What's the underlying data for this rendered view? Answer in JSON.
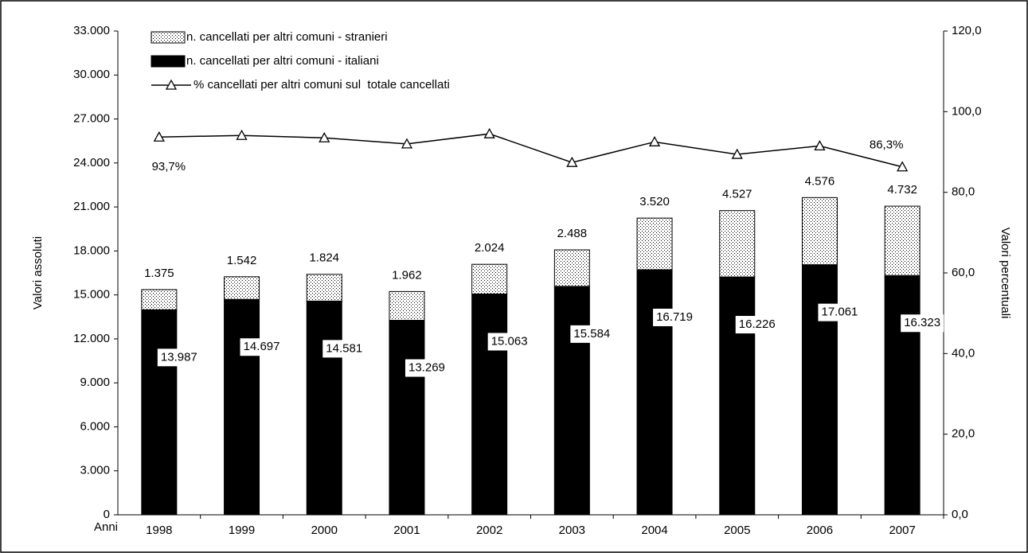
{
  "chart_data": {
    "type": "bar",
    "stacked": true,
    "x_label": "Anni",
    "y_label": "Valori assoluti",
    "y2_label": "Valori percentuali",
    "categories": [
      "1998",
      "1999",
      "2000",
      "2001",
      "2002",
      "2003",
      "2004",
      "2005",
      "2006",
      "2007"
    ],
    "series": [
      {
        "name": "n. cancellati per altri comuni - italiani",
        "color": "#000000",
        "values": [
          13987,
          14697,
          14581,
          13269,
          15063,
          15584,
          16719,
          16226,
          17061,
          16323
        ],
        "value_labels": [
          "13.987",
          "14.697",
          "14.581",
          "13.269",
          "15.063",
          "15.584",
          "16.719",
          "16.226",
          "17.061",
          "16.323"
        ]
      },
      {
        "name": "n. cancellati per altri comuni - stranieri",
        "color": "#ffffff",
        "pattern": "dotted",
        "values": [
          1375,
          1542,
          1824,
          1962,
          2024,
          2488,
          3520,
          4527,
          4576,
          4732
        ],
        "value_labels": [
          "1.375",
          "1.542",
          "1.824",
          "1.962",
          "2.024",
          "2.488",
          "3.520",
          "4.527",
          "4.576",
          "4.732"
        ]
      },
      {
        "name": "% cancellati per altri comuni sul  totale cancellati",
        "type": "line",
        "axis": "y2",
        "color": "#000000",
        "values": [
          93.7,
          94.1,
          93.5,
          92.0,
          94.5,
          87.4,
          92.5,
          89.4,
          91.5,
          86.3
        ],
        "value_labels": [
          "93,7%",
          null,
          null,
          null,
          null,
          null,
          null,
          null,
          null,
          "86,3%"
        ]
      }
    ],
    "ylim": [
      0,
      33000
    ],
    "yticks": [
      0,
      {
        "value": 3000,
        "label": "3.000"
      },
      {
        "value": 6000,
        "label": "6.000"
      },
      {
        "value": 9000,
        "label": "9.000"
      },
      {
        "value": 12000,
        "label": "12.000"
      },
      {
        "value": 15000,
        "label": "15.000"
      },
      {
        "value": 18000,
        "label": "18.000"
      },
      {
        "value": 21000,
        "label": "21.000"
      },
      {
        "value": 24000,
        "label": "24.000"
      },
      {
        "value": 27000,
        "label": "27.000"
      },
      {
        "value": 30000,
        "label": "30.000"
      },
      {
        "value": 33000,
        "label": "33.000"
      }
    ],
    "y2lim": [
      0,
      120
    ],
    "y2ticks": [
      {
        "value": 0,
        "label": "0,0"
      },
      {
        "value": 20,
        "label": "20,0"
      },
      {
        "value": 40,
        "label": "40,0"
      },
      {
        "value": 60,
        "label": "60,0"
      },
      {
        "value": 80,
        "label": "80,0"
      },
      {
        "value": 100,
        "label": "100,0"
      },
      {
        "value": 120,
        "label": "120,0"
      }
    ],
    "grid": false,
    "legend": "top-left"
  }
}
